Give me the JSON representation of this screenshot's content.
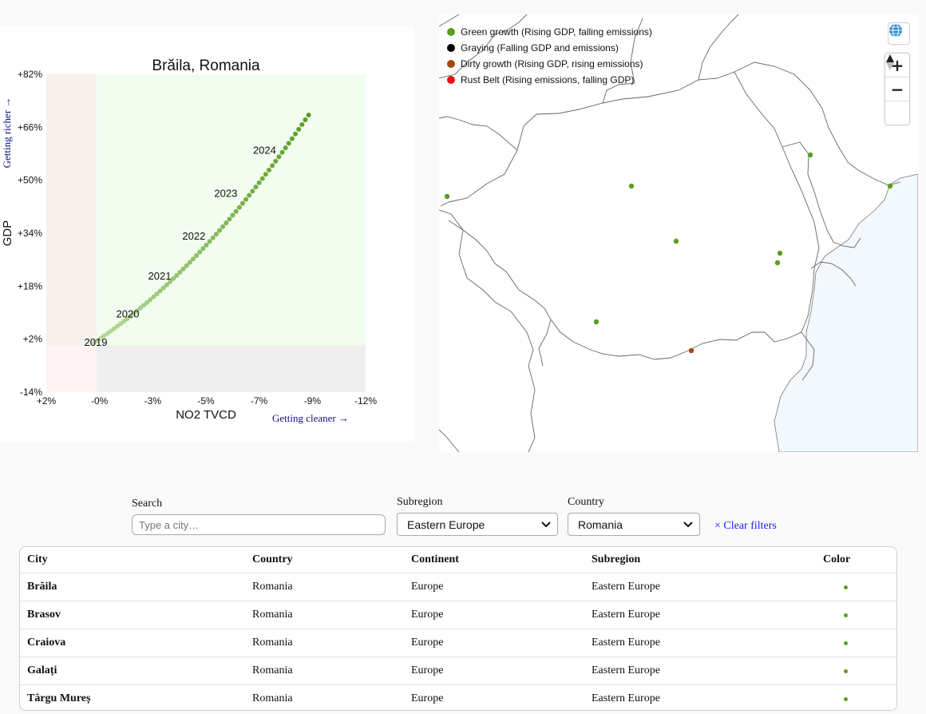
{
  "chart_data": {
    "type": "scatter",
    "title": "Brăila, Romania",
    "xlabel": "NO2 TVCD",
    "ylabel": "GDP",
    "x_note": "Getting cleaner →",
    "y_note": "Getting richer →",
    "x_ticks": [
      "+2%",
      "-0%",
      "-3%",
      "-5%",
      "-7%",
      "-9%",
      "-12%"
    ],
    "y_ticks": [
      "+82%",
      "+66%",
      "+50%",
      "+34%",
      "+18%",
      "+2%",
      "-14%"
    ],
    "xlim": [
      2,
      -12
    ],
    "ylim": [
      -14,
      82
    ],
    "quadrants": {
      "green": "#f2fdf0",
      "gray": "#efefef",
      "beige": "#f6f1ec",
      "pink": "#fff3f5"
    },
    "trail_color": "#5a9e1f",
    "start": {
      "x": -0.1,
      "y": 1,
      "label": "2019"
    },
    "end": {
      "x": -9.5,
      "y": 69.7
    },
    "year_labels": [
      {
        "year": "2019",
        "x": -0.1,
        "y": 1
      },
      {
        "year": "2020",
        "x": -1.5,
        "y": 9.5
      },
      {
        "year": "2021",
        "x": -2.9,
        "y": 21
      },
      {
        "year": "2022",
        "x": -4.4,
        "y": 33
      },
      {
        "year": "2023",
        "x": -5.8,
        "y": 46
      },
      {
        "year": "2024",
        "x": -7.5,
        "y": 59
      }
    ],
    "points_count": 66
  },
  "map": {
    "legend": [
      {
        "label": "Green growth (Rising GDP, falling emissions)",
        "color": "#5a9e1f"
      },
      {
        "label": "Graying (Falling GDP and emissions)",
        "color": "#000000"
      },
      {
        "label": "Dirty growth (Rising GDP, rising emissions)",
        "color": "#a04a0e"
      },
      {
        "label": "Rust Belt (Rising emissions, falling GDP)",
        "color": "#ee1111"
      }
    ],
    "controls": {
      "globe": "globe-icon",
      "zoom_in": "+",
      "zoom_out": "−",
      "compass": "compass-icon"
    },
    "sea_color": "#f3f8fc",
    "cities": [
      {
        "name": "Brăila",
        "color": "#5a9e1f"
      },
      {
        "name": "Brasov",
        "color": "#5a9e1f"
      },
      {
        "name": "Craiova",
        "color": "#5a9e1f"
      },
      {
        "name": "Galați",
        "color": "#5a9e1f"
      },
      {
        "name": "Târgu Mureș",
        "color": "#5a9e1f"
      },
      {
        "name": "",
        "color": "#5a9e1f"
      },
      {
        "name": "",
        "color": "#5a9e1f"
      },
      {
        "name": "",
        "color": "#5a9e1f"
      },
      {
        "name": "",
        "color": "#a04a0e"
      }
    ]
  },
  "filters": {
    "search_label": "Search",
    "search_placeholder": "Type a city…",
    "search_value": "",
    "subregion_label": "Subregion",
    "subregion_value": "Eastern Europe",
    "country_label": "Country",
    "country_value": "Romania",
    "clear_label": "× Clear filters"
  },
  "table": {
    "headers": [
      "City",
      "Country",
      "Continent",
      "Subregion",
      "Color"
    ],
    "rows": [
      {
        "city": "Brăila",
        "country": "Romania",
        "continent": "Europe",
        "subregion": "Eastern Europe",
        "color": "#5a9e1f"
      },
      {
        "city": "Brasov",
        "country": "Romania",
        "continent": "Europe",
        "subregion": "Eastern Europe",
        "color": "#5a9e1f"
      },
      {
        "city": "Craiova",
        "country": "Romania",
        "continent": "Europe",
        "subregion": "Eastern Europe",
        "color": "#5a9e1f"
      },
      {
        "city": "Galați",
        "country": "Romania",
        "continent": "Europe",
        "subregion": "Eastern Europe",
        "color": "#5a9e1f"
      },
      {
        "city": "Târgu Mureș",
        "country": "Romania",
        "continent": "Europe",
        "subregion": "Eastern Europe",
        "color": "#5a9e1f"
      }
    ]
  }
}
